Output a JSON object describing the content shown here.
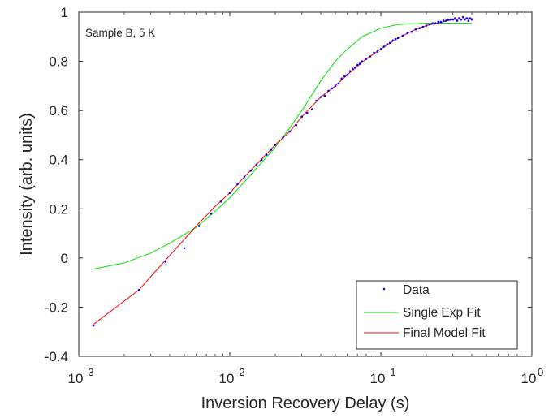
{
  "chart_data": {
    "type": "scatter",
    "title": "",
    "annotation": "Sample B, 5 K",
    "xlabel": "Inversion Recovery Delay (s)",
    "ylabel": "Intensity (arb. units)",
    "xscale": "log",
    "xlim": [
      0.001,
      1
    ],
    "ylim": [
      -0.4,
      1
    ],
    "grid": false,
    "legend_position": "bottom-right",
    "x_ticks": [
      {
        "value": 0.001,
        "base": "10",
        "exp": "-3"
      },
      {
        "value": 0.01,
        "base": "10",
        "exp": "-2"
      },
      {
        "value": 0.1,
        "base": "10",
        "exp": "-1"
      },
      {
        "value": 1,
        "base": "10",
        "exp": "0"
      }
    ],
    "y_ticks": [
      {
        "value": -0.4,
        "label": "-0.4"
      },
      {
        "value": -0.2,
        "label": "-0.2"
      },
      {
        "value": 0,
        "label": "0"
      },
      {
        "value": 0.2,
        "label": "0.2"
      },
      {
        "value": 0.4,
        "label": "0.4"
      },
      {
        "value": 0.6,
        "label": "0.6"
      },
      {
        "value": 0.8,
        "label": "0.8"
      },
      {
        "value": 1,
        "label": "1"
      }
    ],
    "colors": {
      "data": "#0000ff",
      "single_exp": "#00e000",
      "final_model": "#ff0000",
      "axes": "#262626"
    },
    "series": [
      {
        "name": "Data",
        "kind": "markers",
        "color": "#0000ff",
        "points": [
          [
            0.00125,
            -0.275
          ],
          [
            0.0025,
            -0.13
          ],
          [
            0.00375,
            -0.015
          ],
          [
            0.005,
            0.04
          ],
          [
            0.00625,
            0.13
          ],
          [
            0.0075,
            0.18
          ],
          [
            0.00875,
            0.23
          ],
          [
            0.01,
            0.265
          ],
          [
            0.01125,
            0.3
          ],
          [
            0.0125,
            0.33
          ],
          [
            0.01375,
            0.355
          ],
          [
            0.015,
            0.38
          ],
          [
            0.01625,
            0.4
          ],
          [
            0.0175,
            0.42
          ],
          [
            0.01875,
            0.44
          ],
          [
            0.02,
            0.46
          ],
          [
            0.0225,
            0.49
          ],
          [
            0.025,
            0.515
          ],
          [
            0.0275,
            0.54
          ],
          [
            0.03,
            0.575
          ],
          [
            0.0325,
            0.59
          ],
          [
            0.035,
            0.605
          ],
          [
            0.0375,
            0.64
          ],
          [
            0.04,
            0.655
          ],
          [
            0.0425,
            0.66
          ],
          [
            0.045,
            0.68
          ],
          [
            0.0475,
            0.69
          ],
          [
            0.05,
            0.7
          ],
          [
            0.0525,
            0.71
          ],
          [
            0.055,
            0.73
          ],
          [
            0.0575,
            0.74
          ],
          [
            0.06,
            0.745
          ],
          [
            0.0625,
            0.76
          ],
          [
            0.065,
            0.77
          ],
          [
            0.0675,
            0.775
          ],
          [
            0.07,
            0.785
          ],
          [
            0.0725,
            0.79
          ],
          [
            0.075,
            0.8
          ],
          [
            0.08,
            0.81
          ],
          [
            0.085,
            0.82
          ],
          [
            0.09,
            0.835
          ],
          [
            0.095,
            0.84
          ],
          [
            0.1,
            0.85
          ],
          [
            0.105,
            0.86
          ],
          [
            0.11,
            0.87
          ],
          [
            0.115,
            0.875
          ],
          [
            0.12,
            0.885
          ],
          [
            0.125,
            0.89
          ],
          [
            0.13,
            0.895
          ],
          [
            0.14,
            0.905
          ],
          [
            0.15,
            0.915
          ],
          [
            0.16,
            0.92
          ],
          [
            0.17,
            0.93
          ],
          [
            0.18,
            0.935
          ],
          [
            0.19,
            0.94
          ],
          [
            0.2,
            0.945
          ],
          [
            0.21,
            0.95
          ],
          [
            0.22,
            0.955
          ],
          [
            0.23,
            0.955
          ],
          [
            0.24,
            0.96
          ],
          [
            0.25,
            0.96
          ],
          [
            0.26,
            0.965
          ],
          [
            0.27,
            0.965
          ],
          [
            0.28,
            0.97
          ],
          [
            0.29,
            0.97
          ],
          [
            0.3,
            0.97
          ],
          [
            0.31,
            0.975
          ],
          [
            0.32,
            0.965
          ],
          [
            0.33,
            0.975
          ],
          [
            0.34,
            0.97
          ],
          [
            0.35,
            0.98
          ],
          [
            0.36,
            0.97
          ],
          [
            0.37,
            0.975
          ],
          [
            0.38,
            0.965
          ],
          [
            0.39,
            0.975
          ],
          [
            0.4,
            0.97
          ]
        ]
      },
      {
        "name": "Single Exp Fit",
        "kind": "line",
        "color": "#00e000",
        "points": [
          [
            0.00125,
            -0.045
          ],
          [
            0.002,
            -0.02
          ],
          [
            0.003,
            0.02
          ],
          [
            0.004,
            0.06
          ],
          [
            0.005,
            0.095
          ],
          [
            0.006,
            0.125
          ],
          [
            0.008,
            0.19
          ],
          [
            0.01,
            0.245
          ],
          [
            0.0125,
            0.31
          ],
          [
            0.015,
            0.365
          ],
          [
            0.02,
            0.45
          ],
          [
            0.025,
            0.53
          ],
          [
            0.03,
            0.6
          ],
          [
            0.04,
            0.72
          ],
          [
            0.05,
            0.8
          ],
          [
            0.06,
            0.85
          ],
          [
            0.075,
            0.9
          ],
          [
            0.1,
            0.935
          ],
          [
            0.13,
            0.95
          ],
          [
            0.2,
            0.955
          ],
          [
            0.4,
            0.955
          ]
        ]
      },
      {
        "name": "Final Model Fit",
        "kind": "line",
        "color": "#ff0000",
        "points": [
          [
            0.00125,
            -0.27
          ],
          [
            0.0025,
            -0.13
          ],
          [
            0.004,
            0.01
          ],
          [
            0.006,
            0.13
          ],
          [
            0.008,
            0.21
          ],
          [
            0.01,
            0.265
          ],
          [
            0.0125,
            0.33
          ],
          [
            0.015,
            0.38
          ],
          [
            0.02,
            0.46
          ],
          [
            0.025,
            0.515
          ],
          [
            0.03,
            0.575
          ],
          [
            0.04,
            0.655
          ],
          [
            0.05,
            0.7
          ],
          [
            0.06,
            0.745
          ],
          [
            0.08,
            0.81
          ],
          [
            0.1,
            0.85
          ],
          [
            0.13,
            0.895
          ],
          [
            0.17,
            0.93
          ],
          [
            0.2,
            0.945
          ],
          [
            0.3,
            0.97
          ],
          [
            0.4,
            0.975
          ]
        ]
      }
    ]
  }
}
